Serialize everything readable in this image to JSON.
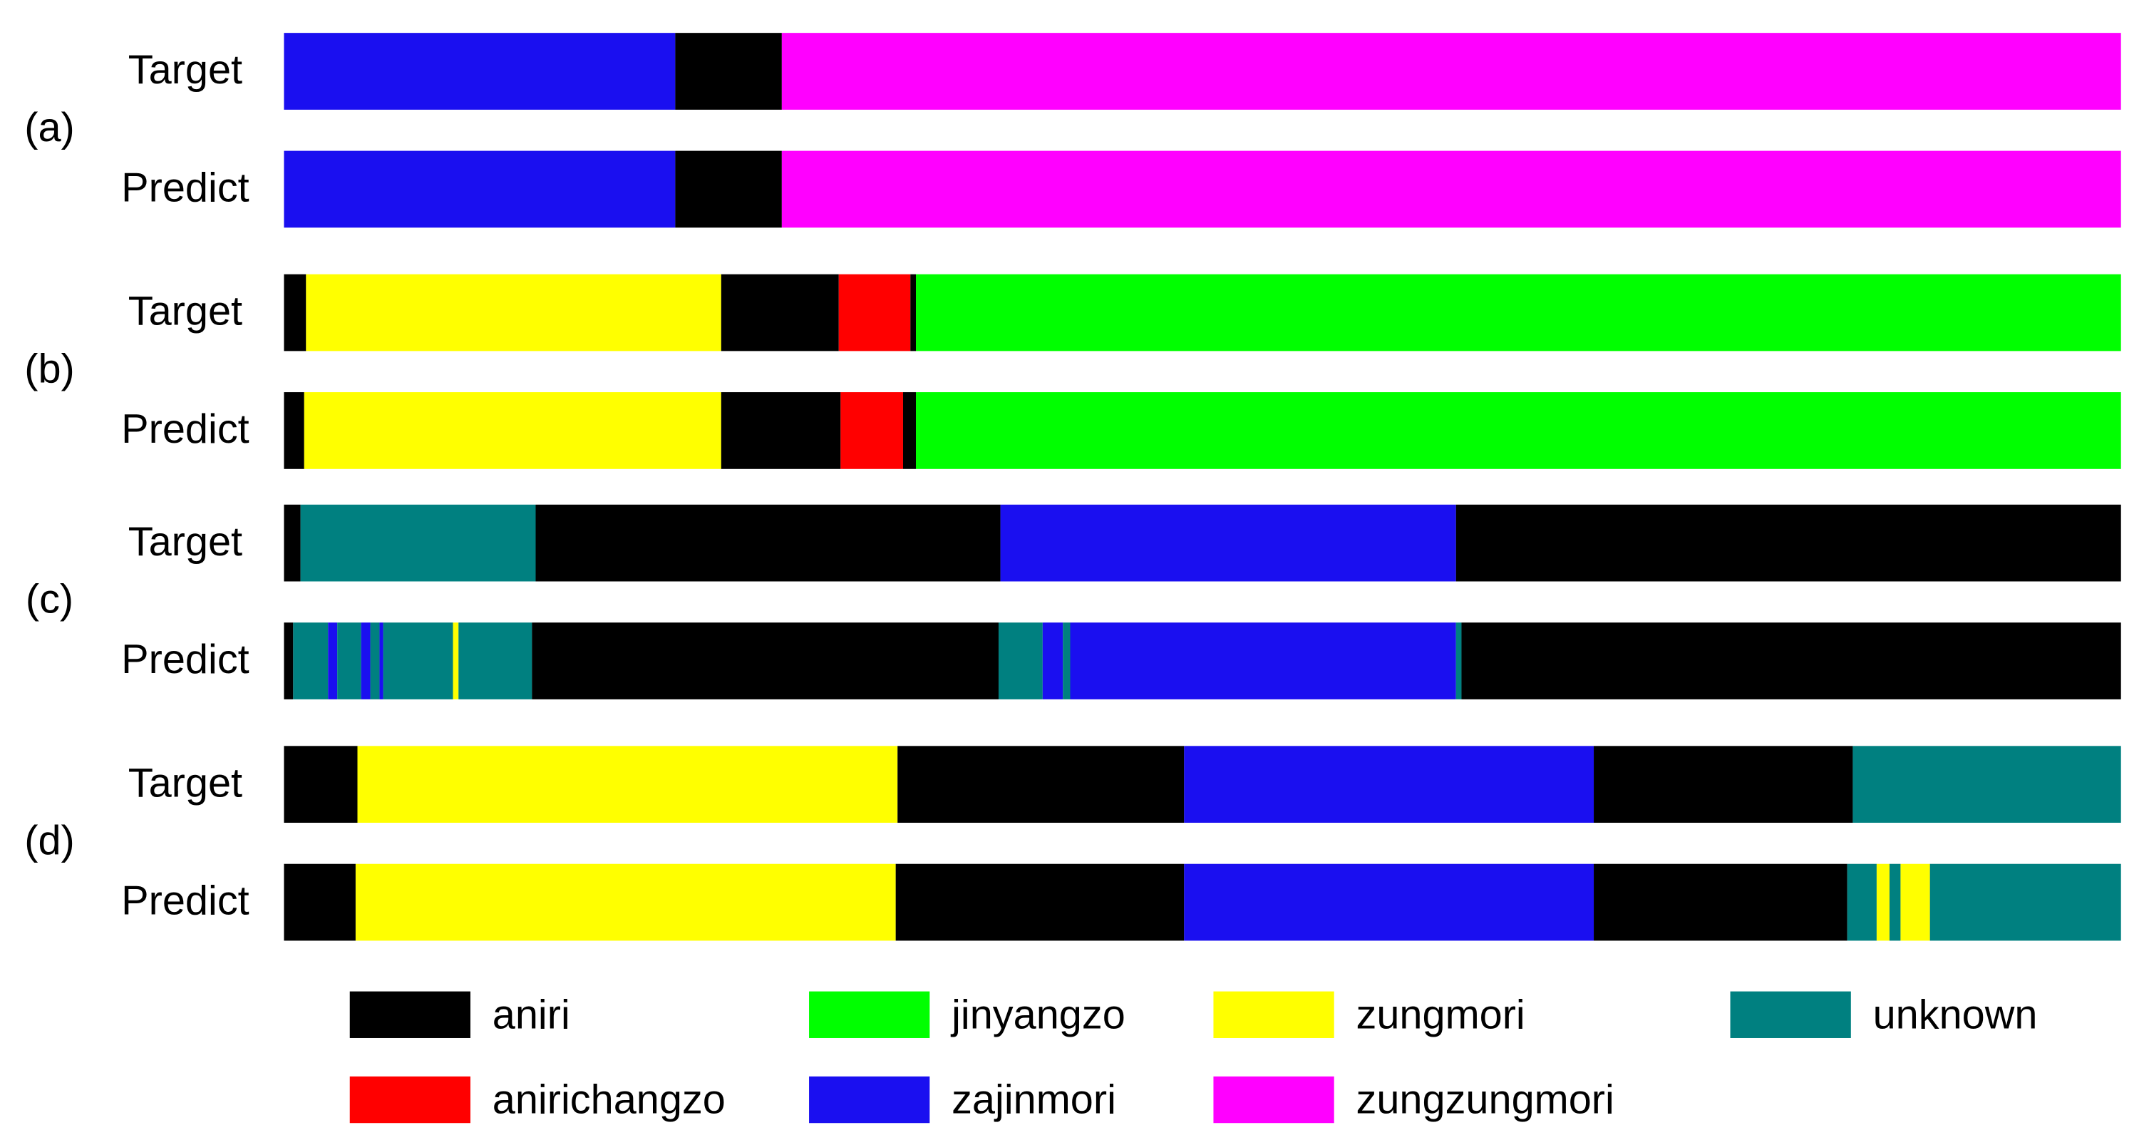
{
  "chart_data": {
    "type": "segmentation",
    "xlim": [
      0,
      100
    ],
    "classes": [
      {
        "name": "aniri",
        "color": "#000000"
      },
      {
        "name": "jinyangzo",
        "color": "#00ff00"
      },
      {
        "name": "zungmori",
        "color": "#ffff00"
      },
      {
        "name": "unknown",
        "color": "#008080"
      },
      {
        "name": "anirichangzo",
        "color": "#ff0000"
      },
      {
        "name": "zajinmori",
        "color": "#1a0ff0"
      },
      {
        "name": "zungzungmori",
        "color": "#ff00ff"
      }
    ],
    "groups": [
      {
        "label": "(a)",
        "rows": [
          {
            "name": "Target",
            "segments": [
              {
                "class": 5,
                "start": 0,
                "end": 21.3
              },
              {
                "class": 0,
                "start": 21.3,
                "end": 27.1
              },
              {
                "class": 6,
                "start": 27.1,
                "end": 100
              }
            ]
          },
          {
            "name": "Predict",
            "segments": [
              {
                "class": 5,
                "start": 0,
                "end": 21.3
              },
              {
                "class": 0,
                "start": 21.3,
                "end": 27.1
              },
              {
                "class": 6,
                "start": 27.1,
                "end": 100
              }
            ]
          }
        ]
      },
      {
        "label": "(b)",
        "rows": [
          {
            "name": "Target",
            "segments": [
              {
                "class": 0,
                "start": 0,
                "end": 1.2
              },
              {
                "class": 2,
                "start": 1.2,
                "end": 23.8
              },
              {
                "class": 0,
                "start": 23.8,
                "end": 30.2
              },
              {
                "class": 4,
                "start": 30.2,
                "end": 34.1
              },
              {
                "class": 0,
                "start": 34.1,
                "end": 34.4
              },
              {
                "class": 1,
                "start": 34.4,
                "end": 100
              }
            ]
          },
          {
            "name": "Predict",
            "segments": [
              {
                "class": 0,
                "start": 0,
                "end": 1.1
              },
              {
                "class": 2,
                "start": 1.1,
                "end": 23.8
              },
              {
                "class": 0,
                "start": 23.8,
                "end": 30.3
              },
              {
                "class": 4,
                "start": 30.3,
                "end": 33.7
              },
              {
                "class": 0,
                "start": 33.7,
                "end": 34.4
              },
              {
                "class": 1,
                "start": 34.4,
                "end": 100
              }
            ]
          }
        ]
      },
      {
        "label": "(c)",
        "rows": [
          {
            "name": "Target",
            "segments": [
              {
                "class": 0,
                "start": 0,
                "end": 0.9
              },
              {
                "class": 3,
                "start": 0.9,
                "end": 13.7
              },
              {
                "class": 0,
                "start": 13.7,
                "end": 39.0
              },
              {
                "class": 5,
                "start": 39.0,
                "end": 63.8
              },
              {
                "class": 0,
                "start": 63.8,
                "end": 100
              }
            ]
          },
          {
            "name": "Predict",
            "segments": [
              {
                "class": 0,
                "start": 0,
                "end": 0.5
              },
              {
                "class": 3,
                "start": 0.5,
                "end": 2.4
              },
              {
                "class": 5,
                "start": 2.4,
                "end": 2.9
              },
              {
                "class": 3,
                "start": 2.9,
                "end": 4.2
              },
              {
                "class": 5,
                "start": 4.2,
                "end": 4.7
              },
              {
                "class": 3,
                "start": 4.7,
                "end": 5.2
              },
              {
                "class": 5,
                "start": 5.2,
                "end": 5.4
              },
              {
                "class": 3,
                "start": 5.4,
                "end": 9.2
              },
              {
                "class": 2,
                "start": 9.2,
                "end": 9.5
              },
              {
                "class": 3,
                "start": 9.5,
                "end": 13.5
              },
              {
                "class": 0,
                "start": 13.5,
                "end": 38.9
              },
              {
                "class": 3,
                "start": 38.9,
                "end": 41.3
              },
              {
                "class": 5,
                "start": 41.3,
                "end": 42.4
              },
              {
                "class": 3,
                "start": 42.4,
                "end": 42.8
              },
              {
                "class": 5,
                "start": 42.8,
                "end": 63.8
              },
              {
                "class": 3,
                "start": 63.8,
                "end": 64.1
              },
              {
                "class": 0,
                "start": 64.1,
                "end": 100
              }
            ]
          }
        ]
      },
      {
        "label": "(d)",
        "rows": [
          {
            "name": "Target",
            "segments": [
              {
                "class": 0,
                "start": 0,
                "end": 4.0
              },
              {
                "class": 2,
                "start": 4.0,
                "end": 33.4
              },
              {
                "class": 0,
                "start": 33.4,
                "end": 49.0
              },
              {
                "class": 5,
                "start": 49.0,
                "end": 71.3
              },
              {
                "class": 0,
                "start": 71.3,
                "end": 85.4
              },
              {
                "class": 3,
                "start": 85.4,
                "end": 100
              }
            ]
          },
          {
            "name": "Predict",
            "segments": [
              {
                "class": 0,
                "start": 0,
                "end": 3.9
              },
              {
                "class": 2,
                "start": 3.9,
                "end": 33.3
              },
              {
                "class": 0,
                "start": 33.3,
                "end": 49.0
              },
              {
                "class": 5,
                "start": 49.0,
                "end": 71.3
              },
              {
                "class": 0,
                "start": 71.3,
                "end": 85.1
              },
              {
                "class": 3,
                "start": 85.1,
                "end": 86.7
              },
              {
                "class": 2,
                "start": 86.7,
                "end": 87.4
              },
              {
                "class": 3,
                "start": 87.4,
                "end": 88.0
              },
              {
                "class": 2,
                "start": 88.0,
                "end": 89.6
              },
              {
                "class": 3,
                "start": 89.6,
                "end": 100
              }
            ]
          }
        ]
      }
    ]
  }
}
